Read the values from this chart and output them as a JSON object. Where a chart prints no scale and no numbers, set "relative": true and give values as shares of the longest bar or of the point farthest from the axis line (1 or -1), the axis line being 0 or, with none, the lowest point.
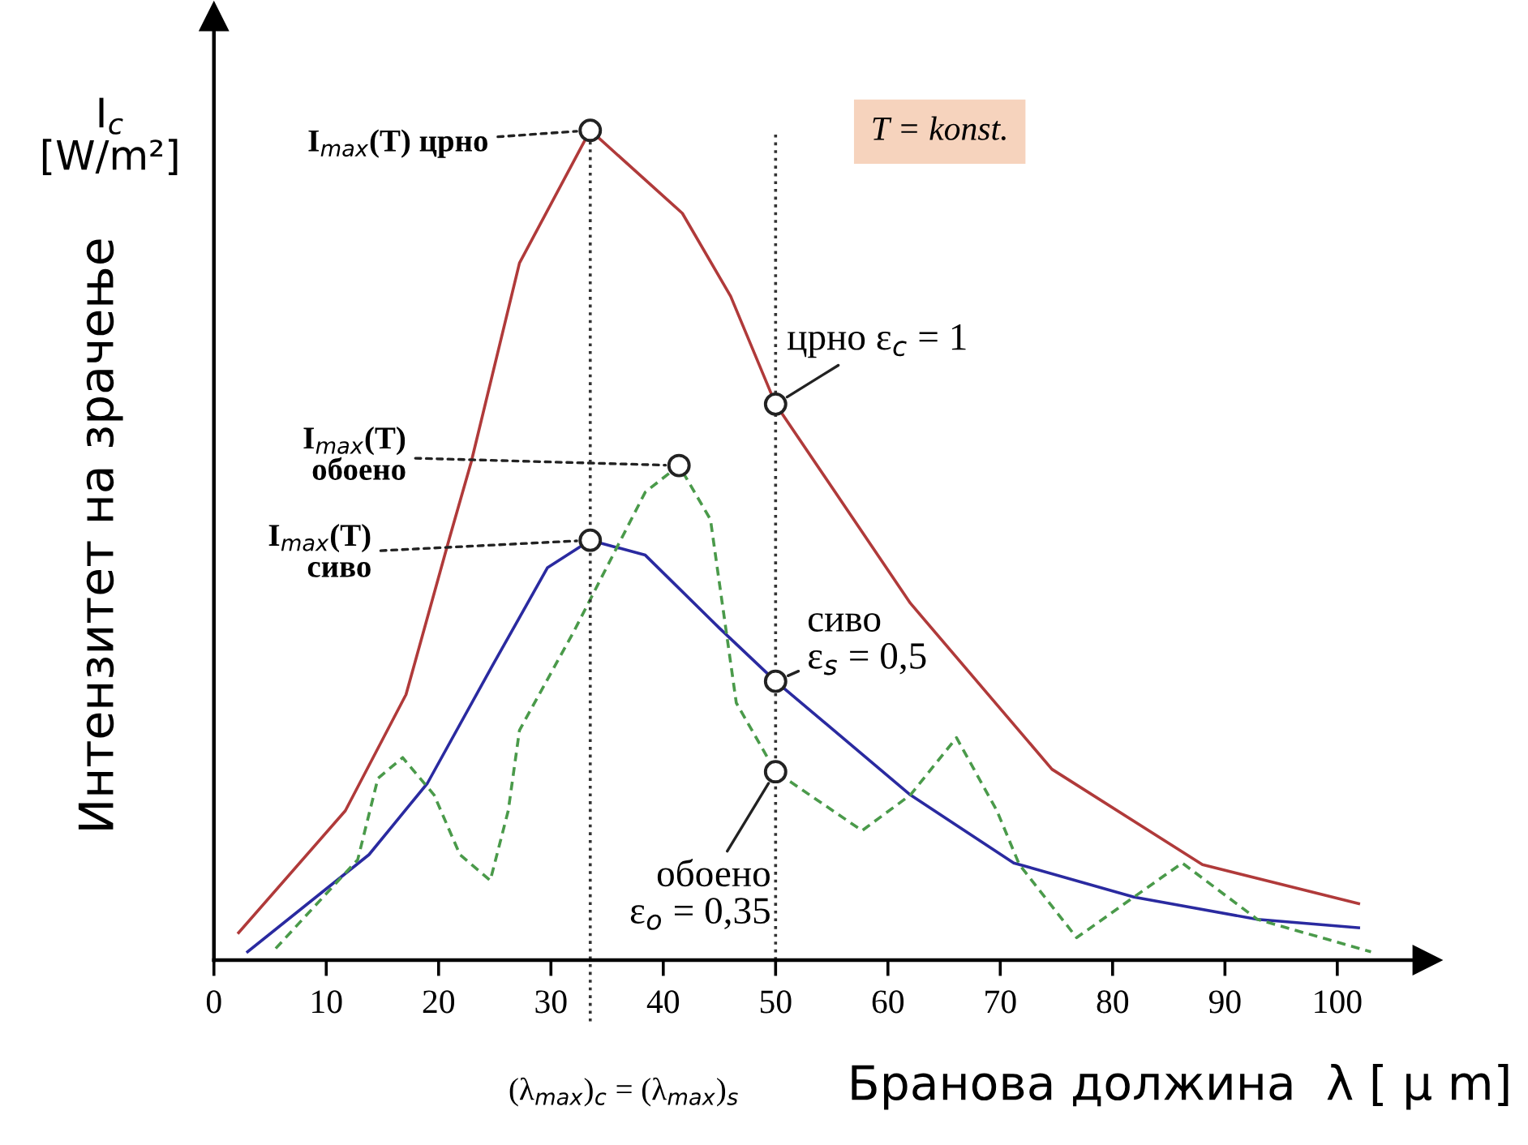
{
  "chart_data": {
    "type": "line",
    "relative": true,
    "xlabel": "Бранова должина  λ [ μ m]",
    "ylabel": "Интензитет на зрачење",
    "xlim": [
      0,
      108
    ],
    "xticks": [
      0,
      10,
      20,
      30,
      40,
      50,
      60,
      70,
      80,
      90,
      100
    ],
    "tick_labels": "x",
    "grid": false,
    "marker": "none",
    "line_style": "solid",
    "series": [
      {
        "color": "#b03a3a",
        "x": [
          2.2,
          11.7,
          17.1,
          21,
          22.9,
          27.2,
          33.5,
          41.7,
          46,
          50,
          62,
          74.6,
          88,
          101.9
        ],
        "values": [
          0.033,
          0.18,
          0.32,
          0.51,
          0.6,
          0.84,
          1.0,
          0.9,
          0.8,
          0.67,
          0.43,
          0.23,
          0.115,
          0.068
        ]
      },
      {
        "color": "#2a2aa0",
        "x": [
          3,
          13.8,
          19,
          24.8,
          29.7,
          33.5,
          38.4,
          45,
          50,
          62,
          71.2,
          81.9,
          92.9,
          101.9
        ],
        "values": [
          0.01,
          0.127,
          0.213,
          0.355,
          0.473,
          0.506,
          0.488,
          0.4,
          0.336,
          0.199,
          0.117,
          0.076,
          0.049,
          0.039
        ]
      },
      {
        "color": "#4a9a4a",
        "line_style": "dashed",
        "x": [
          5.5,
          12.8,
          14.6,
          16.8,
          19.6,
          21.9,
          24.6,
          26.2,
          27.2,
          32,
          38.4,
          41.4,
          44.2,
          46.5,
          50,
          57.7,
          62,
          66.1,
          69.7,
          71.7,
          76.8,
          81.9,
          86.2,
          92.9,
          103
        ],
        "values": [
          0.014,
          0.121,
          0.219,
          0.244,
          0.199,
          0.127,
          0.096,
          0.18,
          0.277,
          0.395,
          0.564,
          0.596,
          0.531,
          0.31,
          0.227,
          0.156,
          0.199,
          0.268,
          0.18,
          0.115,
          0.027,
          0.076,
          0.117,
          0.049,
          0.01
        ]
      }
    ],
    "ref_lines": [
      {
        "axis": "x",
        "value": 33.5,
        "label": "(λ$_{max}$)$_{c}$ = (λ$_{max}$)$_{s}$",
        "line_style": "dotted"
      },
      {
        "axis": "x",
        "value": 50,
        "label": null,
        "line_style": "dotted"
      }
    ],
    "annotations": [
      {
        "text": "I$_{max}$(T) црно",
        "x": 33.5,
        "y": 1.0
      },
      {
        "text": "I$_{max}$(T)\nобоено",
        "x": 41.4,
        "y": 0.596
      },
      {
        "text": "I$_{max}$(T)\nсиво",
        "x": 33.5,
        "y": 0.506
      },
      {
        "text": "црно ε$_{c}$ = 1",
        "x": 50,
        "y": 0.67
      },
      {
        "text": "сиво\nε$_{s}$ = 0,5",
        "x": 50,
        "y": 0.336
      },
      {
        "text": "обоено\nε$_{o}$ = 0,35",
        "x": 50,
        "y": 0.227
      },
      "T = konst.",
      "I$_{c}$\n[W/m²]"
    ]
  }
}
